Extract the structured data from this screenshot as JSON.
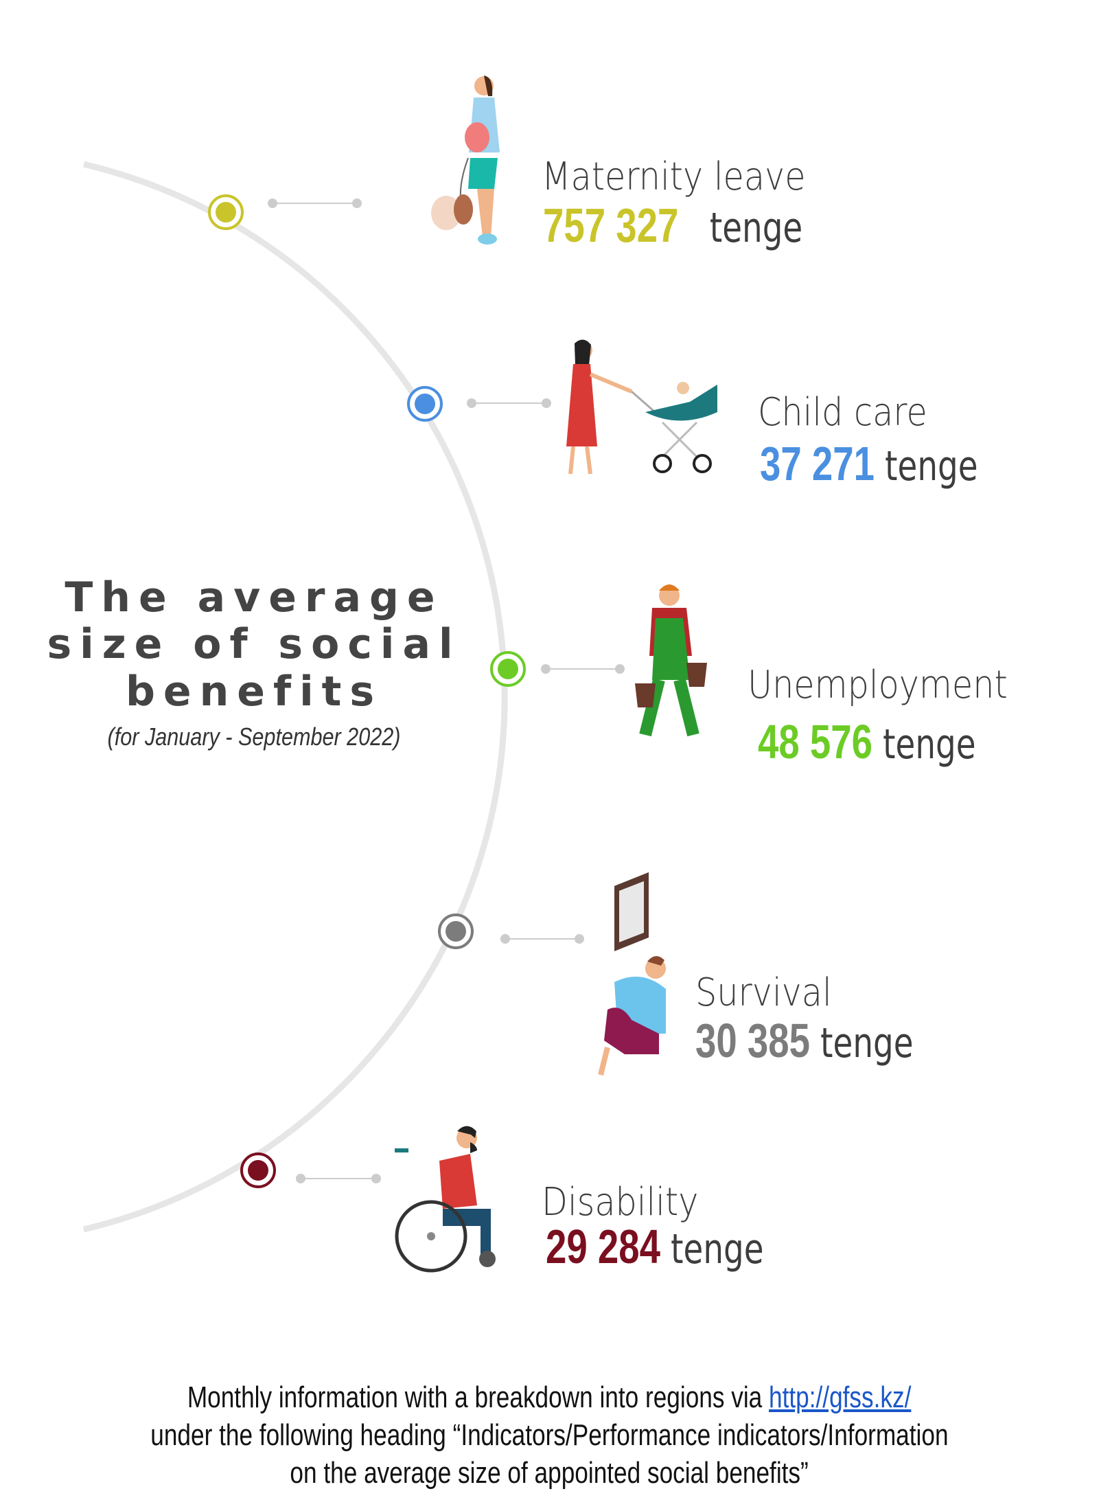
{
  "heading": {
    "line1": "The average",
    "line2": "size of social",
    "line3": "benefits",
    "period": "(for January - September 2022)"
  },
  "benefits": [
    {
      "name": "Maternity leave",
      "amount": "757 327",
      "unit": "tenge",
      "color": "#c9c42a",
      "icon": "pregnant-woman-with-dog"
    },
    {
      "name": "Child care",
      "amount": "37 271",
      "unit": "tenge",
      "color": "#4a8fe0",
      "icon": "woman-with-stroller"
    },
    {
      "name": "Unemployment",
      "amount": "48 576",
      "unit": "tenge",
      "color": "#6ccc25",
      "icon": "worker-with-buckets"
    },
    {
      "name": "Survival",
      "amount": "30 385",
      "unit": "tenge",
      "color": "#7c7c7c",
      "icon": "grieving-man-with-portrait"
    },
    {
      "name": "Disability",
      "amount": "29 284",
      "unit": "tenge",
      "color": "#7a0f1f",
      "icon": "man-in-wheelchair"
    }
  ],
  "footer": {
    "line1_prefix": "Monthly information with a breakdown into regions via ",
    "link": "http://gfss.kz/",
    "line2": "under the following heading “Indicators/Performance indicators/Information",
    "line3": "on the average size of appointed social benefits”"
  }
}
